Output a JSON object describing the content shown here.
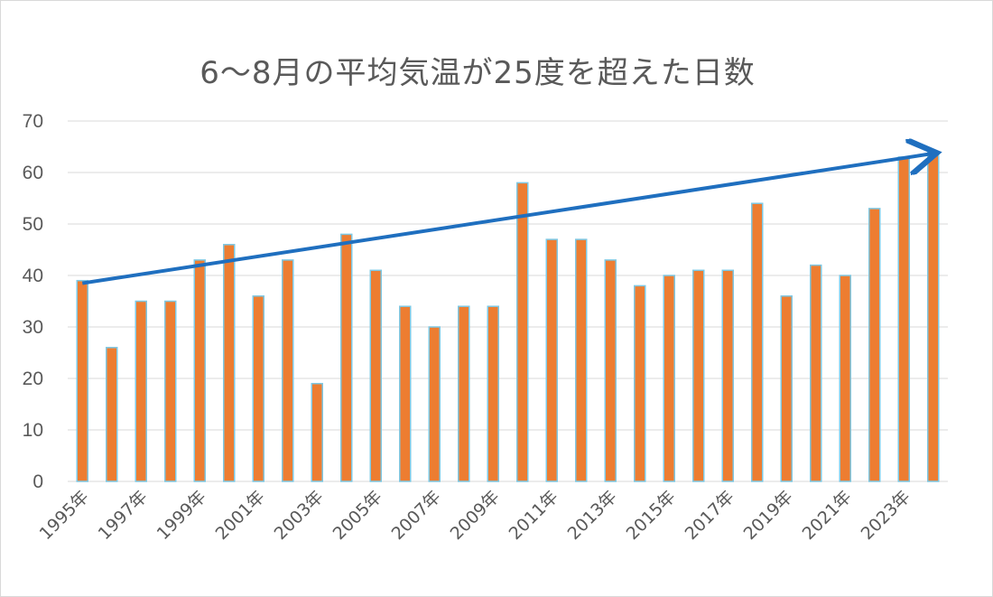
{
  "chart_data": {
    "type": "bar",
    "title": "6〜8月の平均気温が25度を超えた日数",
    "xlabel": "",
    "ylabel": "",
    "categories": [
      "1995年",
      "1996年",
      "1997年",
      "1998年",
      "1999年",
      "2000年",
      "2001年",
      "2002年",
      "2003年",
      "2004年",
      "2005年",
      "2006年",
      "2007年",
      "2008年",
      "2009年",
      "2010年",
      "2011年",
      "2012年",
      "2013年",
      "2014年",
      "2015年",
      "2016年",
      "2017年",
      "2018年",
      "2019年",
      "2020年",
      "2021年",
      "2022年",
      "2023年",
      "2024年"
    ],
    "x_tick_labels": [
      "1995年",
      "1997年",
      "1999年",
      "2001年",
      "2003年",
      "2005年",
      "2007年",
      "2009年",
      "2011年",
      "2013年",
      "2015年",
      "2017年",
      "2019年",
      "2021年",
      "2023年"
    ],
    "values": [
      39,
      26,
      35,
      35,
      43,
      46,
      36,
      43,
      19,
      48,
      41,
      34,
      30,
      34,
      34,
      58,
      47,
      47,
      43,
      38,
      40,
      41,
      41,
      54,
      36,
      42,
      40,
      53,
      63,
      64
    ],
    "ylim": [
      0,
      70
    ],
    "yticks": [
      0,
      10,
      20,
      30,
      40,
      50,
      60,
      70
    ],
    "grid": true,
    "legend": "none",
    "bar_color": "#ED7D31",
    "bar_edge_color": "#7EC8E3",
    "trend_arrow": {
      "from_value": 38.5,
      "to_value": 63.7,
      "color": "#1F6FBF"
    }
  }
}
